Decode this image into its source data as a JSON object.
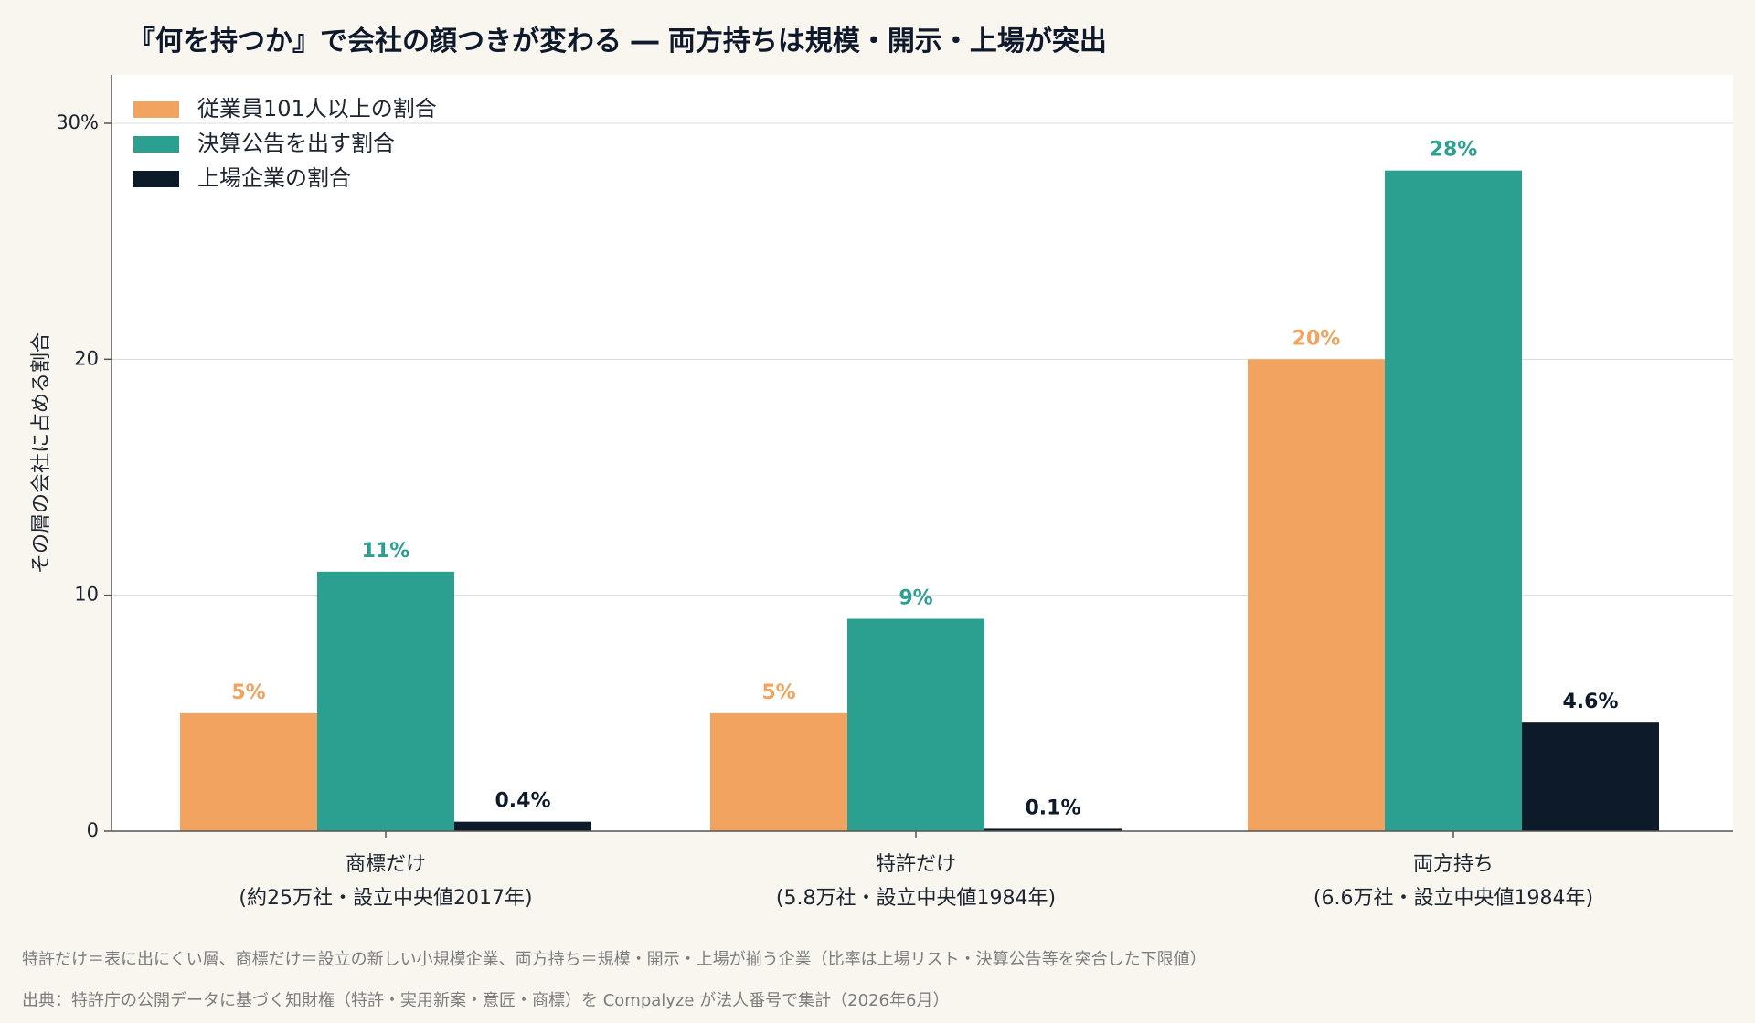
{
  "page": {
    "title": "『何を持つか』で会社の顔つきが変わる ― 両方持ちは規模・開示・上場が突出",
    "footnote": "特許だけ＝表に出にくい層、商標だけ＝設立の新しい小規模企業、両方持ち＝規模・開示・上場が揃う企業（比率は上場リスト・決算公告等を突合した下限値）",
    "source": "出典：特許庁の公開データに基づく知財権（特許・実用新案・意匠・商標）を Compalyze が法人番号で集計（2026年6月）"
  },
  "chart_data": {
    "type": "bar",
    "title": "『何を持つか』で会社の顔つきが変わる ― 両方持ちは規模・開示・上場が突出",
    "xlabel": "",
    "ylabel": "その層の会社に占める割合",
    "ylim": [
      0,
      32
    ],
    "yticks": [
      0,
      10,
      20,
      30
    ],
    "ytick_labels": [
      "0",
      "10",
      "20",
      "30%"
    ],
    "grid": true,
    "legend_position": "top-left",
    "categories": [
      [
        "商標だけ",
        "(約25万社・設立中央値2017年)"
      ],
      [
        "特許だけ",
        "(5.8万社・設立中央値1984年)"
      ],
      [
        "両方持ち",
        "(6.6万社・設立中央値1984年)"
      ]
    ],
    "series": [
      {
        "name": "従業員101人以上の割合",
        "color": "#f2a35f",
        "values": [
          5,
          5,
          20
        ],
        "labels": [
          "5%",
          "5%",
          "20%"
        ]
      },
      {
        "name": "決算公告を出す割合",
        "color": "#2ba091",
        "values": [
          11,
          9,
          28
        ],
        "labels": [
          "11%",
          "9%",
          "28%"
        ]
      },
      {
        "name": "上場企業の割合",
        "color": "#0d1a2a",
        "values": [
          0.4,
          0.1,
          4.6
        ],
        "labels": [
          "0.4%",
          "0.1%",
          "4.6%"
        ]
      }
    ]
  }
}
